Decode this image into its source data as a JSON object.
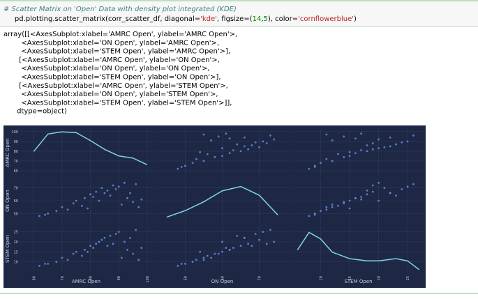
{
  "cell": {
    "comment": "# Scatter Matrix on 'Open' Data with density plot integrated (KDE)",
    "code": [
      "pd.plotting.scatter_matrix(corr_scatter_df, diagonal=",
      "'kde'",
      ", figsize=(",
      "14",
      ",",
      "5",
      "), color=",
      "'cornflowerblue'",
      ")"
    ]
  },
  "output": {
    "lines": [
      "array([[<AxesSubplot:xlabel='AMRC Open', ylabel='AMRC Open'>,",
      "        <AxesSubplot:xlabel='ON Open', ylabel='AMRC Open'>,",
      "        <AxesSubplot:xlabel='STEM Open', ylabel='AMRC Open'>],",
      "       [<AxesSubplot:xlabel='AMRC Open', ylabel='ON Open'>,",
      "        <AxesSubplot:xlabel='ON Open', ylabel='ON Open'>,",
      "        <AxesSubplot:xlabel='STEM Open', ylabel='ON Open'>],",
      "       [<AxesSubplot:xlabel='AMRC Open', ylabel='STEM Open'>,",
      "        <AxesSubplot:xlabel='ON Open', ylabel='STEM Open'>,",
      "        <AxesSubplot:xlabel='STEM Open', ylabel='STEM Open'>]],",
      "      dtype=object)"
    ]
  },
  "chart_data": {
    "type": "scatter_matrix",
    "color": "cornflowerblue",
    "kde_color": "#7fd3e6",
    "grid": true,
    "variables": [
      {
        "name": "AMRC Open",
        "lim": [
          55,
          102
        ],
        "ticks": [
          60,
          70,
          80,
          90,
          100
        ],
        "values": [
          62,
          65,
          68,
          70,
          72,
          74,
          75,
          77,
          78,
          80,
          81,
          82,
          83,
          84,
          85,
          86,
          87,
          88,
          89,
          90,
          91,
          92,
          93,
          94,
          95,
          96,
          97,
          98,
          64,
          79
        ],
        "kde": {
          "x": [
            60,
            65,
            70,
            75,
            80,
            85,
            90,
            95,
            100
          ],
          "density": [
            0.55,
            0.95,
            1.0,
            0.98,
            0.8,
            0.6,
            0.45,
            0.4,
            0.25
          ]
        }
      },
      {
        "name": "ON Open",
        "lim": [
          42,
          78
        ],
        "ticks": [
          50,
          60,
          70
        ],
        "values": [
          48,
          50,
          52,
          55,
          53,
          58,
          60,
          56,
          62,
          65,
          63,
          67,
          60,
          70,
          66,
          68,
          64,
          72,
          69,
          71,
          57,
          74,
          62,
          66,
          59,
          73,
          55,
          61,
          49,
          54
        ],
        "kde": {
          "x": [
            45,
            50,
            55,
            60,
            65,
            70,
            75
          ],
          "density": [
            0.15,
            0.3,
            0.5,
            0.75,
            0.85,
            0.65,
            0.2
          ]
        }
      },
      {
        "name": "STEM Open",
        "lim": [
          5,
          28
        ],
        "ticks": [
          10,
          15,
          20,
          25
        ],
        "values": [
          8,
          9,
          10,
          12,
          11,
          14,
          15,
          13,
          16,
          18,
          17,
          19,
          20,
          21,
          22,
          18,
          23,
          19,
          24,
          25,
          12,
          20,
          16,
          22,
          14,
          26,
          11,
          17,
          9,
          15
        ],
        "kde": {
          "x": [
            6,
            8,
            10,
            12,
            15,
            18,
            20,
            23,
            25,
            27
          ],
          "density": [
            0.5,
            0.9,
            0.75,
            0.45,
            0.3,
            0.25,
            0.25,
            0.3,
            0.25,
            0.05
          ]
        }
      }
    ],
    "density_lim": [
      0,
      1.05
    ]
  }
}
